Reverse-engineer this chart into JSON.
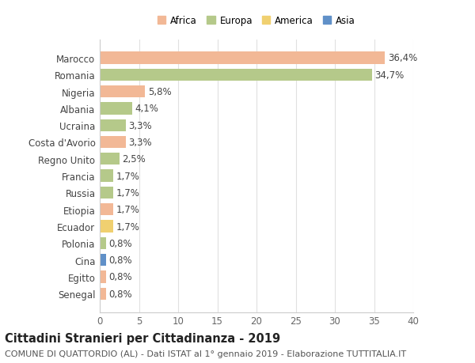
{
  "countries": [
    "Senegal",
    "Egitto",
    "Cina",
    "Polonia",
    "Ecuador",
    "Etiopia",
    "Russia",
    "Francia",
    "Regno Unito",
    "Costa d'Avorio",
    "Ucraina",
    "Albania",
    "Nigeria",
    "Romania",
    "Marocco"
  ],
  "values": [
    0.8,
    0.8,
    0.8,
    0.8,
    1.7,
    1.7,
    1.7,
    1.7,
    2.5,
    3.3,
    3.3,
    4.1,
    5.8,
    34.7,
    36.4
  ],
  "labels": [
    "0,8%",
    "0,8%",
    "0,8%",
    "0,8%",
    "1,7%",
    "1,7%",
    "1,7%",
    "1,7%",
    "2,5%",
    "3,3%",
    "3,3%",
    "4,1%",
    "5,8%",
    "34,7%",
    "36,4%"
  ],
  "continents": [
    "Africa",
    "Africa",
    "Asia",
    "Europa",
    "America",
    "Africa",
    "Europa",
    "Europa",
    "Europa",
    "Africa",
    "Europa",
    "Europa",
    "Africa",
    "Europa",
    "Africa"
  ],
  "colors": {
    "Africa": "#F2B896",
    "Europa": "#B5C98A",
    "America": "#F0D070",
    "Asia": "#6090C8"
  },
  "legend_order": [
    "Africa",
    "Europa",
    "America",
    "Asia"
  ],
  "xlim": [
    0,
    40
  ],
  "xticks": [
    0,
    5,
    10,
    15,
    20,
    25,
    30,
    35,
    40
  ],
  "title_bold": "Cittadini Stranieri per Cittadinanza - 2019",
  "subtitle": "COMUNE DI QUATTORDIO (AL) - Dati ISTAT al 1° gennaio 2019 - Elaborazione TUTTITALIA.IT",
  "background_color": "#ffffff",
  "bar_height": 0.72,
  "label_fontsize": 8.5,
  "tick_fontsize": 8.5,
  "title_fontsize": 10.5,
  "subtitle_fontsize": 8.0
}
